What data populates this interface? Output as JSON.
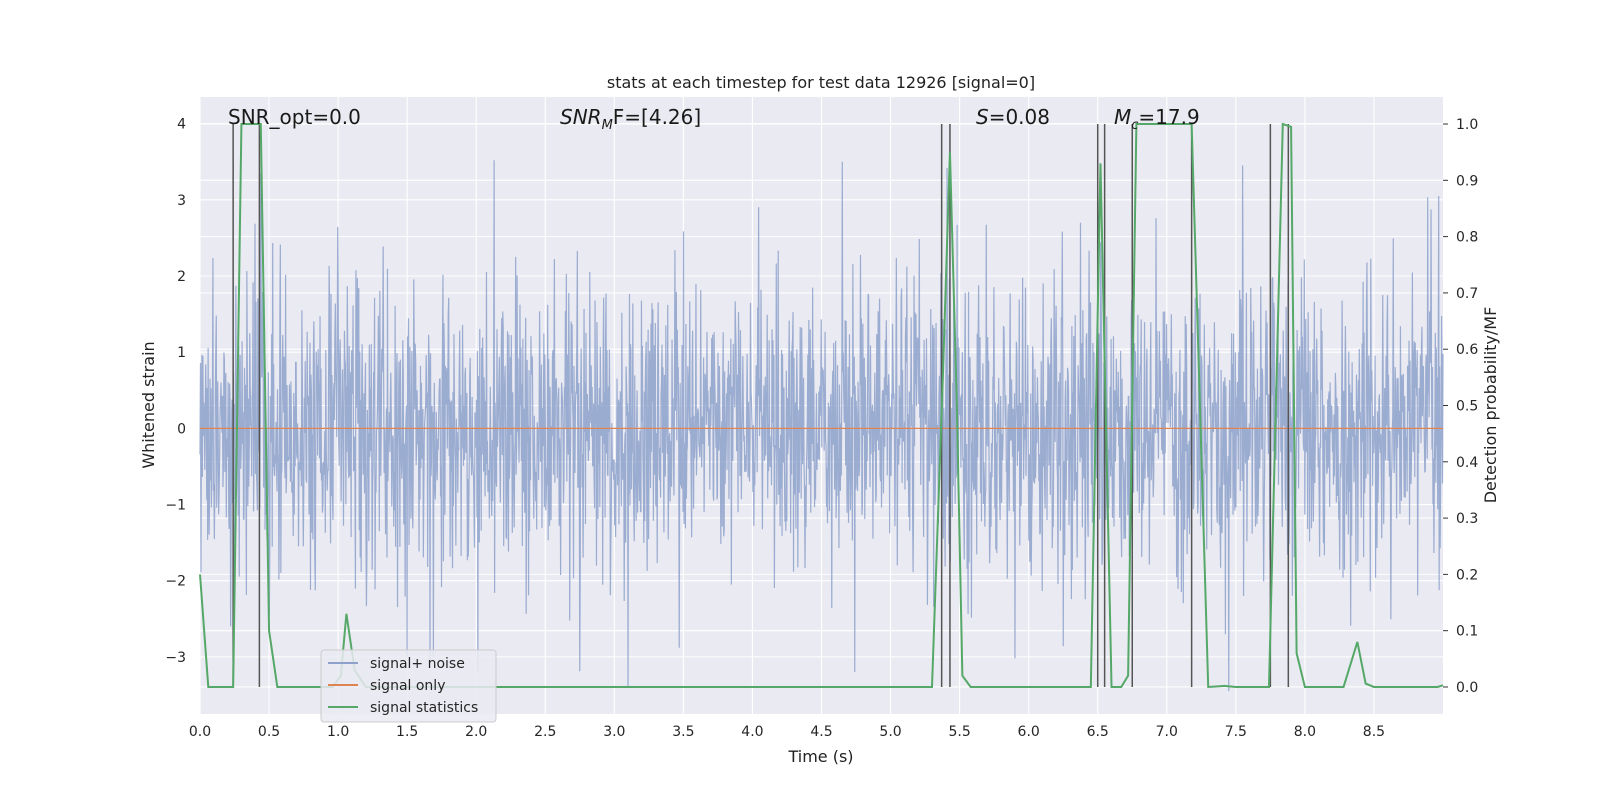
{
  "chart_data": {
    "type": "line",
    "title": "stats at each timestep for test data 12926 [signal=0]",
    "xlabel": "Time (s)",
    "ylabel": "Whitened strain",
    "y2label": "Detection probability/MF",
    "xlim": [
      0.0,
      9.0
    ],
    "ylim": [
      -3.75,
      4.35
    ],
    "y2lim": [
      -0.048,
      1.048
    ],
    "xticks": [
      0.0,
      0.5,
      1.0,
      1.5,
      2.0,
      2.5,
      3.0,
      3.5,
      4.0,
      4.5,
      5.0,
      5.5,
      6.0,
      6.5,
      7.0,
      7.5,
      8.0,
      8.5
    ],
    "xtick_labels": [
      "0.0",
      "0.5",
      "1.0",
      "1.5",
      "2.0",
      "2.5",
      "3.0",
      "3.5",
      "4.0",
      "4.5",
      "5.0",
      "5.5",
      "6.0",
      "6.5",
      "7.0",
      "7.5",
      "8.0",
      "8.5"
    ],
    "yticks": [
      -3,
      -2,
      -1,
      0,
      1,
      2,
      3,
      4
    ],
    "ytick_labels": [
      "−3",
      "−2",
      "−1",
      "0",
      "1",
      "2",
      "3",
      "4"
    ],
    "y2ticks": [
      0.0,
      0.1,
      0.2,
      0.3,
      0.4,
      0.5,
      0.6,
      0.7,
      0.8,
      0.9,
      1.0
    ],
    "y2tick_labels": [
      "0.0",
      "0.1",
      "0.2",
      "0.3",
      "0.4",
      "0.5",
      "0.6",
      "0.7",
      "0.8",
      "0.9",
      "1.0"
    ],
    "annotations": {
      "snr_opt": "SNR_opt=0.0",
      "snr_mf_base": "SNR",
      "snr_mf_sub": "M",
      "snr_mf_rest": "F=[4.26]",
      "s_italic": "S",
      "s_rest": "=0.08",
      "mc_base": "M",
      "mc_sub": "c",
      "mc_rest": "=17.9"
    },
    "legend": {
      "location": "lower-left",
      "entries": [
        {
          "label": "signal+ noise",
          "color": "#8da1cb"
        },
        {
          "label": "signal only",
          "color": "#dd8452"
        },
        {
          "label": "signal statistics",
          "color": "#55a868"
        }
      ]
    },
    "series": [
      {
        "name": "signal+ noise",
        "axis": "left",
        "color": "#8da1cb",
        "style": "dense noise, std ~0.95, range approx -3.4 to 3.5",
        "seed": 12926,
        "samples": 2600,
        "spikes": [
          {
            "x": 2.13,
            "y": 3.52
          },
          {
            "x": 4.65,
            "y": 3.5
          },
          {
            "x": 5.41,
            "y": 3.42
          },
          {
            "x": 0.44,
            "y": 3.35
          },
          {
            "x": 7.55,
            "y": 3.45
          },
          {
            "x": 8.97,
            "y": 3.05
          },
          {
            "x": 1.5,
            "y": -3.0
          },
          {
            "x": 3.1,
            "y": -3.4
          },
          {
            "x": 5.9,
            "y": -3.02
          },
          {
            "x": 7.45,
            "y": -3.45
          },
          {
            "x": 3.47,
            "y": -2.88
          },
          {
            "x": 0.22,
            "y": -2.6
          }
        ]
      },
      {
        "name": "signal only",
        "axis": "left",
        "color": "#dd8452",
        "x": [
          0.0,
          9.0
        ],
        "y": [
          0.0,
          0.0
        ]
      },
      {
        "name": "signal statistics",
        "axis": "right",
        "color": "#55a868",
        "x": [
          0.0,
          0.06,
          0.16,
          0.24,
          0.3,
          0.38,
          0.44,
          0.5,
          0.56,
          0.96,
          1.02,
          1.06,
          1.12,
          1.2,
          5.3,
          5.38,
          5.43,
          5.48,
          5.52,
          5.58,
          6.45,
          6.52,
          6.6,
          6.67,
          6.72,
          6.78,
          7.18,
          7.3,
          7.42,
          7.5,
          7.74,
          7.84,
          7.9,
          7.94,
          8.0,
          8.28,
          8.38,
          8.44,
          8.5,
          8.96,
          9.0
        ],
        "y": [
          0.2,
          0.0,
          0.0,
          0.0,
          1.0,
          1.0,
          1.0,
          0.1,
          0.0,
          0.0,
          0.02,
          0.13,
          0.03,
          0.0,
          0.0,
          0.56,
          0.95,
          0.5,
          0.02,
          0.0,
          0.0,
          0.93,
          0.0,
          0.0,
          0.02,
          1.0,
          1.0,
          0.0,
          0.002,
          0.0,
          0.0,
          1.0,
          0.995,
          0.06,
          0.0,
          0.0,
          0.08,
          0.006,
          0.0,
          0.0,
          0.003
        ]
      }
    ],
    "vlines": [
      0.24,
      0.43,
      5.37,
      5.43,
      6.5,
      6.55,
      6.75,
      7.18,
      7.75,
      7.88
    ]
  }
}
